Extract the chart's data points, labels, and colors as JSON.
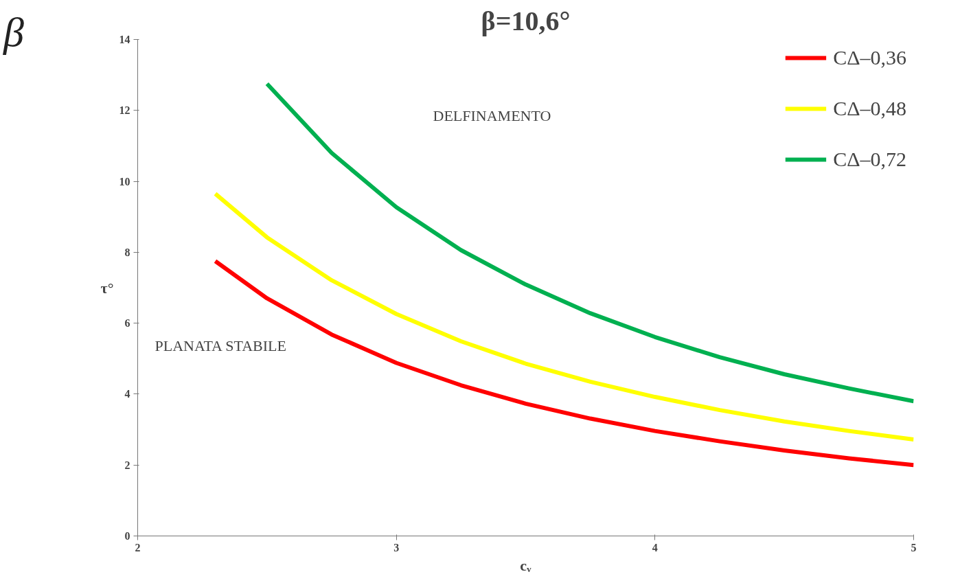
{
  "chart_data": {
    "type": "line",
    "title": "β=10,6°",
    "xlabel": "cᵥ",
    "ylabel": "τ°",
    "annotations": [
      "β",
      "DELFINAMENTO",
      "PLANATA STABILE"
    ],
    "xlim": [
      2,
      5
    ],
    "ylim": [
      0,
      14
    ],
    "xticks": [
      2,
      3,
      4,
      5
    ],
    "yticks": [
      0,
      2,
      4,
      6,
      8,
      10,
      12,
      14
    ],
    "grid": false,
    "legend": "top right",
    "marker": "none",
    "line_style": "solid",
    "series": [
      {
        "name": "CΔ–0,36",
        "color": "#ff0000",
        "x": [
          2.3,
          2.5,
          2.75,
          3,
          3.25,
          3.5,
          3.75,
          4,
          4.25,
          4.5,
          4.75,
          5
        ],
        "values": [
          7.75,
          6.7,
          5.68,
          4.88,
          4.25,
          3.73,
          3.31,
          2.96,
          2.67,
          2.41,
          2.19,
          2.0
        ]
      },
      {
        "name": "CΔ–0,48",
        "color": "#ffff00",
        "x": [
          2.3,
          2.5,
          2.75,
          3,
          3.25,
          3.5,
          3.75,
          4,
          4.25,
          4.5,
          4.75,
          5
        ],
        "values": [
          9.65,
          8.42,
          7.21,
          6.26,
          5.49,
          4.86,
          4.35,
          3.92,
          3.55,
          3.23,
          2.96,
          2.72
        ]
      },
      {
        "name": "CΔ–0,72",
        "color": "#00b050",
        "x": [
          2.5,
          2.75,
          3,
          3.25,
          3.5,
          3.75,
          4,
          4.25,
          4.5,
          4.75,
          5
        ],
        "values": [
          12.75,
          10.8,
          9.27,
          8.06,
          7.09,
          6.28,
          5.61,
          5.04,
          4.56,
          4.16,
          3.8
        ]
      }
    ]
  }
}
